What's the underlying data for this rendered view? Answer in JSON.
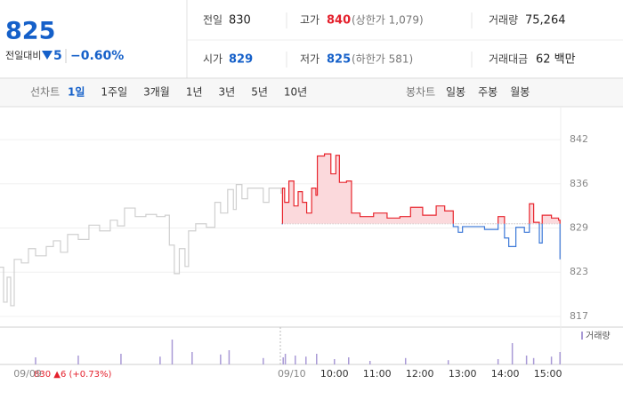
{
  "quote": {
    "price": 825,
    "change_label": "전일대비",
    "change": "5",
    "change_pct": "−0.60%",
    "prev_close_label": "전일",
    "prev_close": 830,
    "high_label": "고가",
    "high": 840,
    "upper_limit": "(상한가 1,079)",
    "volume_label": "거래량",
    "volume": "75,264",
    "open_label": "시가",
    "open": 829,
    "low_label": "저가",
    "low": 825,
    "lower_limit": "(하한가 581)",
    "amount_label": "거래대금",
    "amount": "62 백만"
  },
  "tabs": {
    "line_label": "선차트",
    "line_periods": [
      "1일",
      "1주일",
      "3개월",
      "1년",
      "3년",
      "5년",
      "10년"
    ],
    "candle_label": "봉차트",
    "candle_periods": [
      "일봉",
      "주봉",
      "월봉"
    ]
  },
  "chart_data": {
    "type": "line",
    "annotation": "830 ▲6 (+0.73%)",
    "xlim": [
      130,
      918
    ],
    "xticks": [
      {
        "value": 149,
        "label": "09/09"
      },
      {
        "value": 540,
        "label": "09/10"
      },
      {
        "value": 600,
        "label": "10:00"
      },
      {
        "value": 660,
        "label": "11:00"
      },
      {
        "value": 720,
        "label": "12:00"
      },
      {
        "value": 780,
        "label": "13:00"
      },
      {
        "value": 840,
        "label": "14:00"
      },
      {
        "value": 900,
        "label": "15:00"
      }
    ],
    "ylim": [
      815.5,
      845.8
    ],
    "yticks": [
      {
        "value": 817.0,
        "label": "817"
      },
      {
        "value": 823.2,
        "label": "823"
      },
      {
        "value": 829.4,
        "label": "829"
      },
      {
        "value": 835.6,
        "label": "836"
      },
      {
        "value": 841.8,
        "label": "842"
      }
    ],
    "y2lim": [
      0,
      100
    ],
    "grid": true,
    "series": [
      {
        "color": "#cfcfcf",
        "x": [
          130,
          135,
          140,
          145,
          150,
          160,
          170,
          180,
          195,
          205,
          215,
          225,
          240,
          255,
          270,
          285,
          295,
          305,
          320,
          335,
          350,
          362,
          368,
          375,
          382,
          390,
          395,
          405,
          420,
          432,
          440,
          450,
          458,
          462,
          470,
          478,
          490,
          500,
          508,
          515,
          525
        ],
        "values": [
          823.9,
          819.0,
          822.5,
          818.5,
          825.0,
          824.5,
          826.5,
          825.5,
          826.8,
          827.6,
          826.0,
          828.5,
          827.8,
          829.8,
          829.0,
          830.5,
          829.7,
          832.2,
          831.0,
          831.3,
          831.0,
          831.2,
          827.0,
          823.0,
          826.5,
          824.0,
          829.0,
          830.0,
          829.5,
          833.0,
          831.5,
          834.8,
          832.0,
          835.5,
          833.5,
          835.0,
          835.0,
          833.0,
          835.0,
          835.0,
          834.2
        ]
      },
      {
        "color": "#e8262e",
        "color_below": "#3b78d8",
        "fill": "#fbd9dc",
        "x": [
          526,
          527,
          530,
          536,
          543,
          549,
          555,
          561,
          568,
          574,
          576,
          586,
          595,
          602,
          607,
          617,
          624,
          636,
          655,
          674,
          692,
          707,
          724,
          743,
          755,
          767,
          774,
          780,
          799,
          811,
          830,
          839,
          845,
          855,
          867,
          874,
          880,
          888,
          892,
          905,
          915,
          917
        ],
        "values": [
          830.0,
          835.0,
          833.0,
          836.0,
          832.5,
          834.5,
          833.0,
          831.5,
          835.0,
          834.0,
          839.5,
          839.8,
          837.0,
          839.6,
          835.8,
          836.0,
          831.5,
          831.0,
          831.5,
          830.8,
          831.0,
          832.3,
          831.2,
          832.5,
          831.8,
          829.6,
          828.8,
          829.6,
          829.6,
          829.2,
          831.0,
          828.0,
          826.8,
          829.5,
          828.8,
          832.8,
          830.2,
          827.3,
          831.2,
          830.8,
          830.5,
          825.0
        ]
      },
      {
        "name": "거래량",
        "color": "#a99ad6",
        "axis": "y2",
        "x": [
          180,
          240,
          300,
          355,
          372,
          400,
          440,
          452,
          500,
          528,
          531,
          545,
          560,
          575,
          600,
          620,
          650,
          700,
          760,
          830,
          850,
          870,
          880,
          905,
          917
        ],
        "values": [
          20,
          25,
          30,
          22,
          70,
          35,
          28,
          40,
          18,
          20,
          30,
          25,
          22,
          30,
          15,
          20,
          10,
          18,
          12,
          15,
          60,
          25,
          18,
          22,
          35
        ]
      }
    ]
  }
}
